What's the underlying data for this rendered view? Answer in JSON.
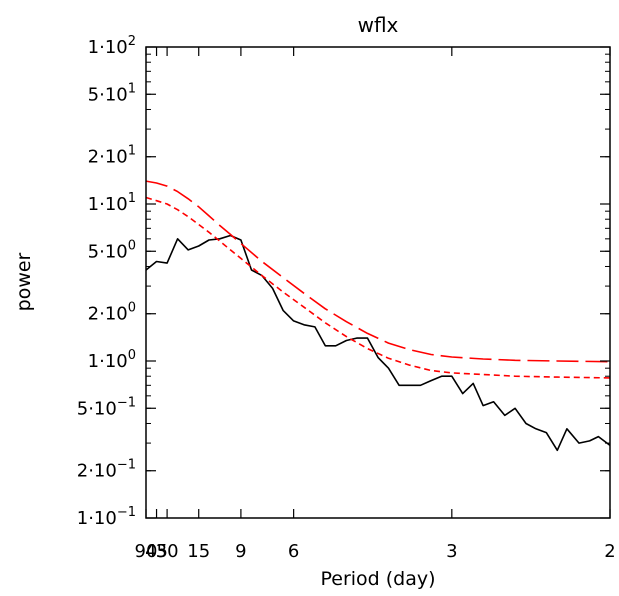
{
  "chart_data": {
    "type": "line",
    "title": "wflx",
    "xlabel": "Period (day)",
    "ylabel": "power",
    "x_scale": "reciprocal",
    "y_scale": "log",
    "xlim": [
      90,
      2
    ],
    "ylim": [
      0.1,
      100
    ],
    "x_ticks": [
      {
        "value": 90,
        "label": "90"
      },
      {
        "value": 45,
        "label": "45"
      },
      {
        "value": 30,
        "label": "30"
      },
      {
        "value": 15,
        "label": "15"
      },
      {
        "value": 9,
        "label": "9"
      },
      {
        "value": 6,
        "label": "6"
      },
      {
        "value": 3,
        "label": "3"
      },
      {
        "value": 2,
        "label": "2"
      }
    ],
    "y_ticks": [
      {
        "value": 100,
        "base": "1·10",
        "exp": "2"
      },
      {
        "value": 50,
        "base": "5·10",
        "exp": "1"
      },
      {
        "value": 20,
        "base": "2·10",
        "exp": "1"
      },
      {
        "value": 10,
        "base": "1·10",
        "exp": "1"
      },
      {
        "value": 5,
        "base": "5·10",
        "exp": "0"
      },
      {
        "value": 2,
        "base": "2·10",
        "exp": "0"
      },
      {
        "value": 1,
        "base": "1·10",
        "exp": "0"
      },
      {
        "value": 0.5,
        "base": "5·10",
        "exp": "−1"
      },
      {
        "value": 0.2,
        "base": "2·10",
        "exp": "−1"
      },
      {
        "value": 0.1,
        "base": "1·10",
        "exp": "−1"
      }
    ],
    "grid": false,
    "legend": "none",
    "series": [
      {
        "style": "solid",
        "color": "#000000",
        "points": [
          [
            90,
            3.8
          ],
          [
            45,
            4.3
          ],
          [
            30,
            4.2
          ],
          [
            22.5,
            6.0
          ],
          [
            18,
            5.1
          ],
          [
            15,
            5.4
          ],
          [
            12.9,
            5.9
          ],
          [
            11.25,
            6.0
          ],
          [
            10,
            6.3
          ],
          [
            9,
            5.9
          ],
          [
            8.18,
            3.8
          ],
          [
            7.5,
            3.5
          ],
          [
            6.92,
            2.9
          ],
          [
            6.43,
            2.1
          ],
          [
            6,
            1.8
          ],
          [
            5.63,
            1.7
          ],
          [
            5.29,
            1.65
          ],
          [
            5,
            1.25
          ],
          [
            4.74,
            1.25
          ],
          [
            4.5,
            1.35
          ],
          [
            4.29,
            1.4
          ],
          [
            4.09,
            1.4
          ],
          [
            3.91,
            1.05
          ],
          [
            3.75,
            0.9
          ],
          [
            3.6,
            0.7
          ],
          [
            3.46,
            0.7
          ],
          [
            3.33,
            0.7
          ],
          [
            3.21,
            0.75
          ],
          [
            3.1,
            0.8
          ],
          [
            3,
            0.8
          ],
          [
            2.9,
            0.62
          ],
          [
            2.81,
            0.72
          ],
          [
            2.73,
            0.52
          ],
          [
            2.65,
            0.55
          ],
          [
            2.57,
            0.45
          ],
          [
            2.5,
            0.5
          ],
          [
            2.43,
            0.4
          ],
          [
            2.37,
            0.37
          ],
          [
            2.31,
            0.35
          ],
          [
            2.25,
            0.27
          ],
          [
            2.2,
            0.37
          ],
          [
            2.14,
            0.3
          ],
          [
            2.09,
            0.31
          ],
          [
            2.05,
            0.33
          ],
          [
            2,
            0.29
          ]
        ]
      },
      {
        "style": "long-dash",
        "color": "#ff0000",
        "points": [
          [
            90,
            14.0
          ],
          [
            45,
            13.6
          ],
          [
            30,
            13.0
          ],
          [
            22.5,
            12.0
          ],
          [
            18,
            10.8
          ],
          [
            15,
            9.6
          ],
          [
            12.9,
            8.4
          ],
          [
            11.25,
            7.3
          ],
          [
            10,
            6.4
          ],
          [
            9,
            5.6
          ],
          [
            7.5,
            4.3
          ],
          [
            6.43,
            3.4
          ],
          [
            5.63,
            2.7
          ],
          [
            5,
            2.15
          ],
          [
            4.5,
            1.78
          ],
          [
            4.09,
            1.5
          ],
          [
            3.75,
            1.3
          ],
          [
            3.46,
            1.18
          ],
          [
            3.21,
            1.1
          ],
          [
            3,
            1.06
          ],
          [
            2.73,
            1.03
          ],
          [
            2.5,
            1.01
          ],
          [
            2.25,
            1.0
          ],
          [
            2,
            0.99
          ]
        ]
      },
      {
        "style": "short-dash",
        "color": "#ff0000",
        "points": [
          [
            90,
            11.0
          ],
          [
            45,
            10.5
          ],
          [
            30,
            10.0
          ],
          [
            22.5,
            9.2
          ],
          [
            18,
            8.3
          ],
          [
            15,
            7.4
          ],
          [
            12.9,
            6.6
          ],
          [
            11.25,
            5.8
          ],
          [
            10,
            5.1
          ],
          [
            9,
            4.5
          ],
          [
            7.5,
            3.5
          ],
          [
            6.43,
            2.75
          ],
          [
            5.63,
            2.2
          ],
          [
            5,
            1.75
          ],
          [
            4.5,
            1.43
          ],
          [
            4.09,
            1.2
          ],
          [
            3.75,
            1.04
          ],
          [
            3.46,
            0.94
          ],
          [
            3.21,
            0.87
          ],
          [
            3,
            0.84
          ],
          [
            2.73,
            0.82
          ],
          [
            2.5,
            0.8
          ],
          [
            2.25,
            0.79
          ],
          [
            2,
            0.78
          ]
        ]
      }
    ]
  }
}
